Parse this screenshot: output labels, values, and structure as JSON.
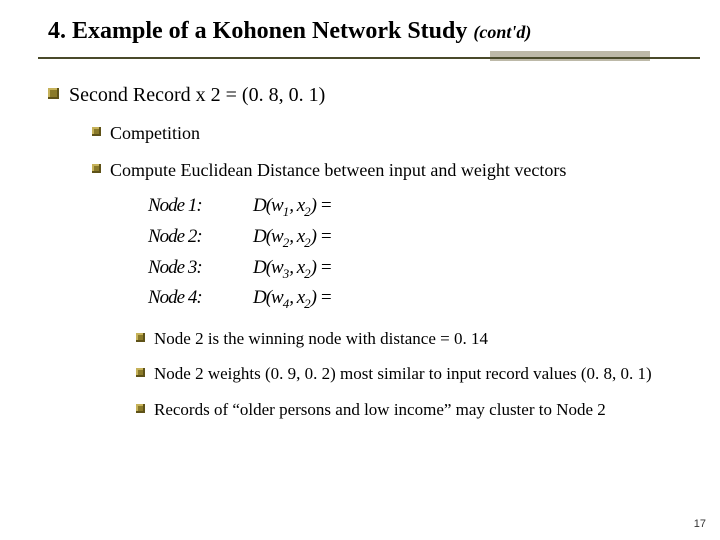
{
  "title": {
    "main": "4. Example of a Kohonen Network Study ",
    "suffix": "(cont'd)"
  },
  "level1_text": "Second Record x 2 = (0. 8, 0. 1)",
  "level2a": "Competition",
  "level2b": "Compute Euclidean Distance between input and weight vectors",
  "math": {
    "rows": [
      {
        "label": "Node 1:",
        "expr_pre": "D(w",
        "sub1": "1",
        "mid": ", x",
        "sub2": "2",
        "post": ") ="
      },
      {
        "label": "Node 2:",
        "expr_pre": "D(w",
        "sub1": "2",
        "mid": ", x",
        "sub2": "2",
        "post": ") ="
      },
      {
        "label": "Node 3:",
        "expr_pre": "D(w",
        "sub1": "3",
        "mid": ", x",
        "sub2": "2",
        "post": ") ="
      },
      {
        "label": "Node 4:",
        "expr_pre": "D(w",
        "sub1": "4",
        "mid": ", x",
        "sub2": "2",
        "post": ") ="
      }
    ]
  },
  "level3a": "Node 2 is the winning node with distance = 0. 14",
  "level3b": "Node 2 weights (0. 9, 0. 2) most similar to input record values (0. 8, 0. 1)",
  "level3c": "Records of “older persons and low income” may cluster to Node 2",
  "page_number": "17",
  "colors": {
    "bullet": "#8a7a2a",
    "rule": "#4a4a2a",
    "rule_shadow": "#bdb9a8",
    "background": "#ffffff",
    "text": "#000000"
  }
}
